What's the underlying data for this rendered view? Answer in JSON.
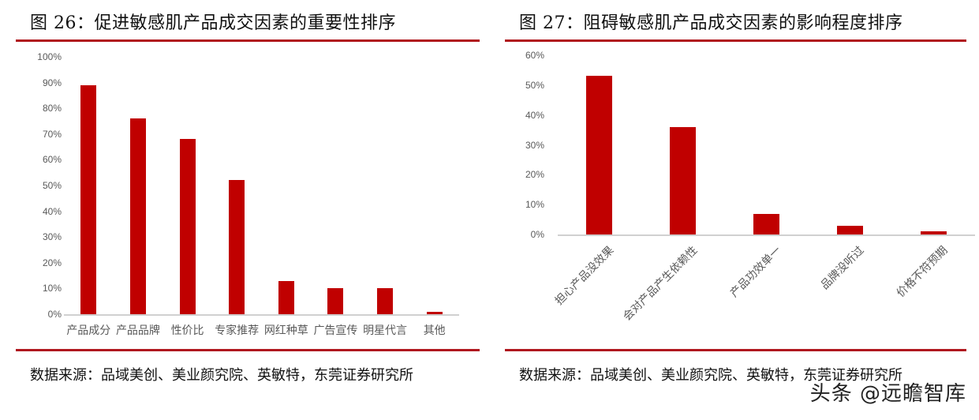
{
  "left": {
    "title": "图 26：促进敏感肌产品成交因素的重要性排序",
    "source": "数据来源：品域美创、美业颜究院、英敏特，东莞证券研究所"
  },
  "right": {
    "title": "图 27：阻碍敏感肌产品成交因素的影响程度排序",
    "source": "数据来源：品域美创、美业颜究院、英敏特，东莞证券研究所"
  },
  "watermark": "头条 @远瞻智库",
  "colors": {
    "bar": "#c00000",
    "rule": "#b0171e",
    "axis": "#d0d0d0",
    "tick_text": "#595959"
  },
  "chart_data": [
    {
      "type": "bar",
      "title": "图 26：促进敏感肌产品成交因素的重要性排序",
      "categories": [
        "产品成分",
        "产品品牌",
        "性价比",
        "专家推荐",
        "网红种草",
        "广告宣传",
        "明星代言",
        "其他"
      ],
      "values": [
        89,
        76,
        68,
        52,
        13,
        10,
        10,
        1
      ],
      "unit": "%",
      "yticks": [
        "0%",
        "10%",
        "20%",
        "30%",
        "40%",
        "50%",
        "60%",
        "70%",
        "80%",
        "90%",
        "100%"
      ],
      "ylim": [
        0,
        100
      ],
      "xlabel": "",
      "ylabel": "",
      "grid": false,
      "legend": null
    },
    {
      "type": "bar",
      "title": "图 27：阻碍敏感肌产品成交因素的影响程度排序",
      "categories": [
        "担心产品没效果",
        "会对产品产生依赖性",
        "产品功效单一",
        "品牌没听过",
        "价格不符预期"
      ],
      "values": [
        53,
        36,
        7,
        3,
        1
      ],
      "unit": "%",
      "yticks": [
        "0%",
        "10%",
        "20%",
        "30%",
        "40%",
        "50%",
        "60%"
      ],
      "ylim": [
        0,
        60
      ],
      "xlabel": "",
      "ylabel": "",
      "grid": false,
      "legend": null
    }
  ]
}
